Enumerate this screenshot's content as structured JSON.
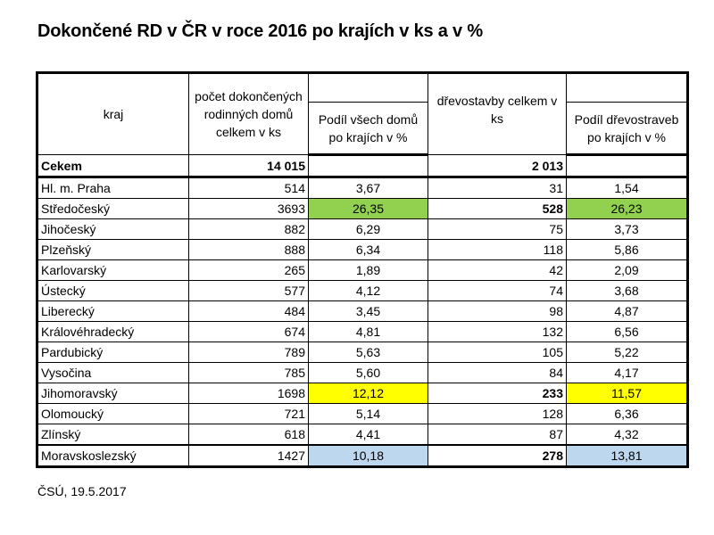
{
  "title": "Dokončené RD v ČR v roce 2016 po krajích v ks a v %",
  "headers": {
    "kraj": "kraj",
    "count_all": "počet dokončených rodinných domů celkem v ks",
    "share_all": "Podíl všech domů po krajích v %",
    "count_wood": "dřevostavby celkem v ks",
    "share_wood": "Podíl dřevostraveb po krajích v %"
  },
  "total": {
    "label": "Cekem",
    "count_all": "14 015",
    "count_wood": "2 013"
  },
  "rows": [
    {
      "kraj": "Hl. m. Praha",
      "count_all": "514",
      "share_all": "3,67",
      "count_wood": "31",
      "share_wood": "1,54",
      "hl": ""
    },
    {
      "kraj": "Středočeský",
      "count_all": "3693",
      "share_all": "26,35",
      "count_wood": "528",
      "share_wood": "26,23",
      "hl": "green"
    },
    {
      "kraj": "Jihočeský",
      "count_all": "882",
      "share_all": "6,29",
      "count_wood": "75",
      "share_wood": "3,73",
      "hl": ""
    },
    {
      "kraj": "Plzeňský",
      "count_all": "888",
      "share_all": "6,34",
      "count_wood": "118",
      "share_wood": "5,86",
      "hl": ""
    },
    {
      "kraj": "Karlovarský",
      "count_all": "265",
      "share_all": "1,89",
      "count_wood": "42",
      "share_wood": "2,09",
      "hl": ""
    },
    {
      "kraj": "Ústecký",
      "count_all": "577",
      "share_all": "4,12",
      "count_wood": "74",
      "share_wood": "3,68",
      "hl": ""
    },
    {
      "kraj": "Liberecký",
      "count_all": "484",
      "share_all": "3,45",
      "count_wood": "98",
      "share_wood": "4,87",
      "hl": ""
    },
    {
      "kraj": "Královéhradecký",
      "count_all": "674",
      "share_all": "4,81",
      "count_wood": "132",
      "share_wood": "6,56",
      "hl": ""
    },
    {
      "kraj": "Pardubický",
      "count_all": "789",
      "share_all": "5,63",
      "count_wood": "105",
      "share_wood": "5,22",
      "hl": ""
    },
    {
      "kraj": "Vysočina",
      "count_all": "785",
      "share_all": "5,60",
      "count_wood": "84",
      "share_wood": "4,17",
      "hl": ""
    },
    {
      "kraj": "Jihomoravský",
      "count_all": "1698",
      "share_all": "12,12",
      "count_wood": "233",
      "share_wood": "11,57",
      "hl": "yellow"
    },
    {
      "kraj": "Olomoucký",
      "count_all": "721",
      "share_all": "5,14",
      "count_wood": "128",
      "share_wood": "6,36",
      "hl": ""
    },
    {
      "kraj": "Zlínský",
      "count_all": "618",
      "share_all": "4,41",
      "count_wood": "87",
      "share_wood": "4,32",
      "hl": ""
    },
    {
      "kraj": "Moravskoslezský",
      "count_all": "1427",
      "share_all": "10,18",
      "count_wood": "278",
      "share_wood": "13,81",
      "hl": "blue"
    }
  ],
  "highlight_colors": {
    "green": "#92d050",
    "yellow": "#ffff00",
    "blue": "#bdd7ee"
  },
  "footer": "ČSÚ, 19.5.2017"
}
